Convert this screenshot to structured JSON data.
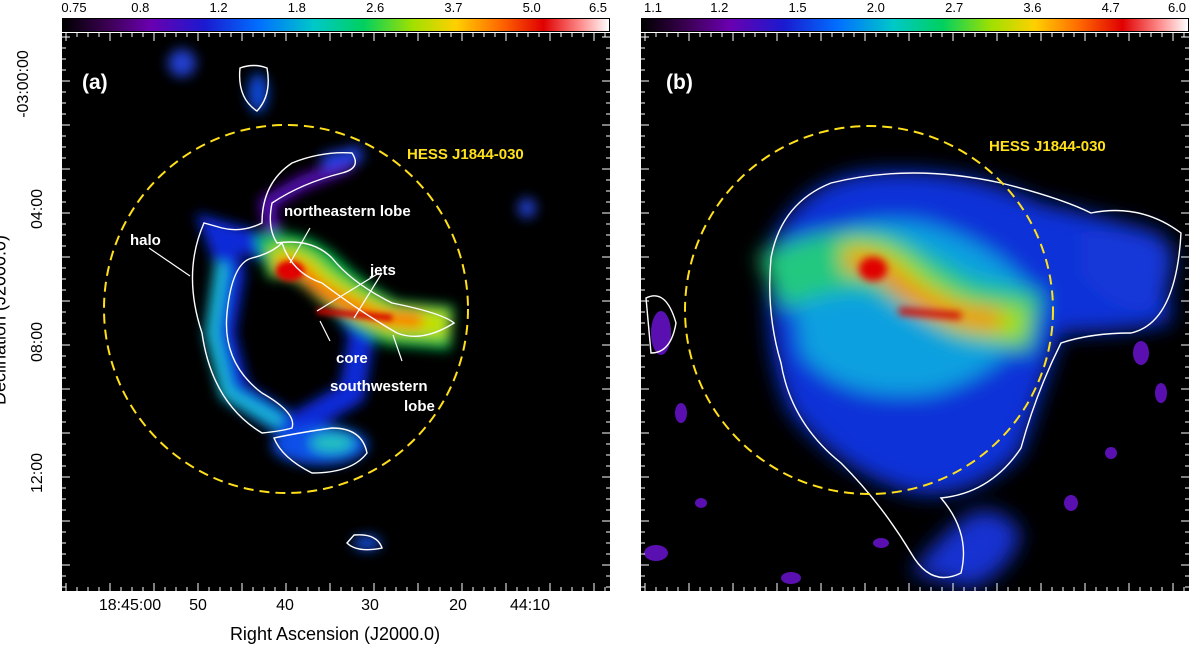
{
  "colorbar_a": {
    "ticks": [
      "0.75",
      "0.8",
      "1.2",
      "1.8",
      "2.6",
      "3.7",
      "5.0",
      "6.5"
    ]
  },
  "colorbar_b": {
    "ticks": [
      "1.1",
      "1.2",
      "1.5",
      "2.0",
      "2.7",
      "3.6",
      "4.7",
      "6.0"
    ]
  },
  "panel_a": {
    "tag": "(a)",
    "source_label": "HESS J1844-030",
    "annotations": {
      "halo": "halo",
      "ne_lobe": "northeastern lobe",
      "jets": "jets",
      "core": "core",
      "sw_lobe_1": "southwestern",
      "sw_lobe_2": "lobe"
    }
  },
  "panel_b": {
    "tag": "(b)",
    "source_label": "HESS J1844-030"
  },
  "axes": {
    "ylabel": "Declination (J2000.0)",
    "xlabel": "Right Ascension (J2000.0)",
    "yticks": [
      "-03:00:00",
      "04:00",
      "08:00",
      "12:00"
    ],
    "xticks": [
      "18:45:00",
      "50",
      "40",
      "30",
      "20",
      "44:10"
    ]
  },
  "colors": {
    "circle": "#ffe01a",
    "contour": "#ffffff",
    "annotation": "#ffffff",
    "background": "#000000"
  }
}
